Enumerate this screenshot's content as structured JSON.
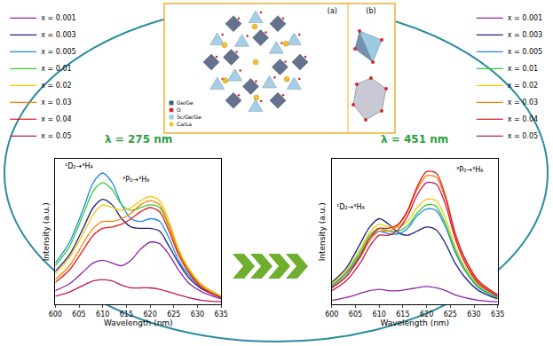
{
  "chart_data": [
    {
      "type": "line",
      "title": "λ = 275 nm",
      "x_label": "Wavelength (nm)",
      "y_label": "Intensity (a.u.)",
      "x": [
        600,
        603,
        606,
        608,
        610,
        612,
        614,
        616,
        618,
        620,
        622,
        624,
        626,
        628,
        631,
        635
      ],
      "xlim": [
        600,
        635
      ],
      "xticks": [
        600,
        605,
        610,
        615,
        620,
        625,
        630,
        635
      ],
      "ylim": [
        0,
        1.05
      ],
      "tick_labels": "x",
      "series": [
        {
          "name": "x = 0.001",
          "color": "#8e24aa",
          "line_style": "solid",
          "values": [
            0.1,
            0.15,
            0.24,
            0.3,
            0.32,
            0.3,
            0.28,
            0.32,
            0.4,
            0.45,
            0.44,
            0.36,
            0.25,
            0.16,
            0.09,
            0.04
          ]
        },
        {
          "name": "x = 0.003",
          "color": "#1a237e",
          "line_style": "solid",
          "values": [
            0.24,
            0.36,
            0.56,
            0.7,
            0.76,
            0.72,
            0.62,
            0.56,
            0.55,
            0.55,
            0.53,
            0.42,
            0.3,
            0.2,
            0.11,
            0.05
          ]
        },
        {
          "name": "x = 0.005",
          "color": "#1e88e5",
          "line_style": "solid",
          "values": [
            0.3,
            0.45,
            0.7,
            0.88,
            0.95,
            0.88,
            0.72,
            0.62,
            0.6,
            0.62,
            0.6,
            0.48,
            0.32,
            0.22,
            0.12,
            0.05
          ]
        },
        {
          "name": "x = 0.01",
          "color": "#33cc33",
          "line_style": "solid",
          "values": [
            0.28,
            0.42,
            0.66,
            0.82,
            0.88,
            0.83,
            0.72,
            0.68,
            0.7,
            0.72,
            0.7,
            0.56,
            0.38,
            0.26,
            0.14,
            0.06
          ]
        },
        {
          "name": "x = 0.02",
          "color": "#f4c800",
          "line_style": "solid",
          "values": [
            0.22,
            0.34,
            0.52,
            0.65,
            0.72,
            0.7,
            0.68,
            0.7,
            0.75,
            0.78,
            0.75,
            0.6,
            0.4,
            0.27,
            0.14,
            0.06
          ]
        },
        {
          "name": "x = 0.03",
          "color": "#ff7f00",
          "line_style": "solid",
          "values": [
            0.18,
            0.28,
            0.45,
            0.55,
            0.6,
            0.6,
            0.62,
            0.66,
            0.72,
            0.75,
            0.72,
            0.57,
            0.38,
            0.25,
            0.13,
            0.05
          ]
        },
        {
          "name": "x = 0.04",
          "color": "#e31a1c",
          "line_style": "solid",
          "values": [
            0.16,
            0.25,
            0.4,
            0.5,
            0.55,
            0.56,
            0.58,
            0.62,
            0.67,
            0.7,
            0.67,
            0.53,
            0.36,
            0.24,
            0.12,
            0.05
          ]
        },
        {
          "name": "x = 0.05",
          "color": "#c2185b",
          "line_style": "solid",
          "values": [
            0.06,
            0.09,
            0.14,
            0.17,
            0.18,
            0.17,
            0.14,
            0.12,
            0.12,
            0.12,
            0.11,
            0.09,
            0.07,
            0.05,
            0.03,
            0.02
          ]
        }
      ],
      "annotations": [
        {
          "text": "¹D₂→³H₄",
          "x": 605,
          "y": 1.0
        },
        {
          "text": "³P₀→³H₆",
          "x": 617,
          "y": 0.9
        }
      ]
    },
    {
      "type": "line",
      "title": "λ = 451 nm",
      "x_label": "Wavelength (nm)",
      "y_label": "Intensity (a.u.)",
      "x": [
        600,
        603,
        606,
        608,
        610,
        612,
        614,
        616,
        618,
        620,
        622,
        624,
        626,
        628,
        631,
        635
      ],
      "xlim": [
        600,
        635
      ],
      "xticks": [
        600,
        605,
        610,
        615,
        620,
        625,
        630,
        635
      ],
      "ylim": [
        0,
        1.05
      ],
      "tick_labels": "x",
      "series": [
        {
          "name": "x = 0.001",
          "color": "#8e24aa",
          "line_style": "solid",
          "values": [
            0.03,
            0.05,
            0.08,
            0.1,
            0.11,
            0.1,
            0.1,
            0.11,
            0.12,
            0.13,
            0.12,
            0.1,
            0.07,
            0.05,
            0.03,
            0.02
          ]
        },
        {
          "name": "x = 0.003",
          "color": "#1a237e",
          "line_style": "solid",
          "values": [
            0.16,
            0.26,
            0.44,
            0.56,
            0.62,
            0.58,
            0.52,
            0.5,
            0.53,
            0.56,
            0.54,
            0.44,
            0.3,
            0.2,
            0.1,
            0.04
          ]
        },
        {
          "name": "x = 0.005",
          "color": "#1e88e5",
          "line_style": "solid",
          "values": [
            0.13,
            0.22,
            0.36,
            0.48,
            0.53,
            0.51,
            0.51,
            0.55,
            0.64,
            0.69,
            0.68,
            0.56,
            0.38,
            0.25,
            0.12,
            0.05
          ]
        },
        {
          "name": "x = 0.01",
          "color": "#33cc33",
          "line_style": "solid",
          "values": [
            0.14,
            0.23,
            0.38,
            0.5,
            0.55,
            0.53,
            0.53,
            0.57,
            0.66,
            0.72,
            0.71,
            0.58,
            0.4,
            0.26,
            0.13,
            0.05
          ]
        },
        {
          "name": "x = 0.02",
          "color": "#f4c800",
          "line_style": "solid",
          "values": [
            0.15,
            0.24,
            0.4,
            0.52,
            0.58,
            0.56,
            0.56,
            0.6,
            0.7,
            0.76,
            0.75,
            0.62,
            0.42,
            0.28,
            0.14,
            0.06
          ]
        },
        {
          "name": "x = 0.03",
          "color": "#ff7f00",
          "line_style": "solid",
          "values": [
            0.12,
            0.2,
            0.34,
            0.46,
            0.53,
            0.53,
            0.57,
            0.67,
            0.83,
            0.93,
            0.92,
            0.76,
            0.5,
            0.33,
            0.16,
            0.07
          ]
        },
        {
          "name": "x = 0.04",
          "color": "#e31a1c",
          "line_style": "solid",
          "values": [
            0.12,
            0.2,
            0.35,
            0.48,
            0.55,
            0.55,
            0.58,
            0.68,
            0.85,
            0.96,
            0.95,
            0.78,
            0.52,
            0.34,
            0.17,
            0.07
          ]
        },
        {
          "name": "x = 0.05",
          "color": "#c2185b",
          "line_style": "solid",
          "values": [
            0.1,
            0.17,
            0.3,
            0.42,
            0.5,
            0.5,
            0.54,
            0.64,
            0.79,
            0.88,
            0.87,
            0.72,
            0.48,
            0.31,
            0.15,
            0.06
          ]
        }
      ],
      "annotations": [
        {
          "text": "³P₀→³H₆",
          "x": 629,
          "y": 0.97
        },
        {
          "text": "¹D₂→³H₄",
          "x": 604,
          "y": 0.7
        }
      ]
    }
  ],
  "structure_figure": {
    "panels": [
      "(a)",
      "(b)"
    ],
    "legend": [
      {
        "label": "Ge/Ge",
        "color": "#4a5a7a",
        "marker": "square"
      },
      {
        "label": "O",
        "color": "#d62728",
        "marker": "circle"
      },
      {
        "label": "Sc/Ge/Ge",
        "color": "#9ec9e2",
        "marker": "square"
      },
      {
        "label": "Ca/La",
        "color": "#f2c12e",
        "marker": "circle"
      }
    ]
  }
}
